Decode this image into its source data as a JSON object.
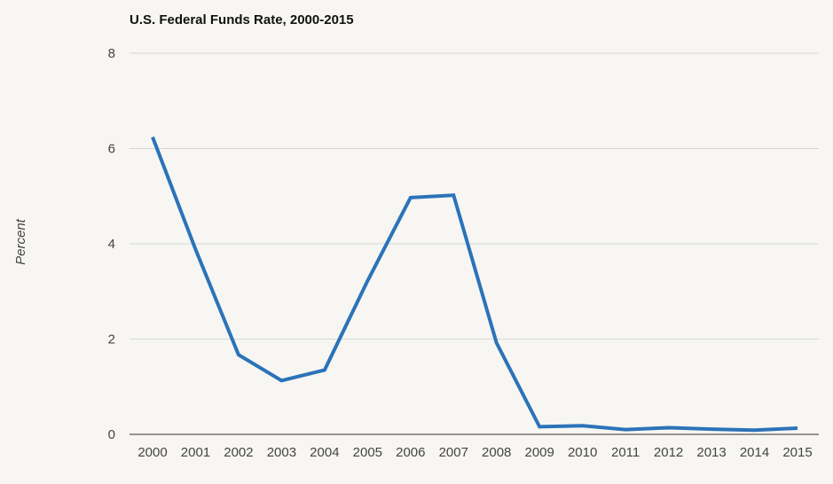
{
  "chart_data": {
    "type": "line",
    "title": "U.S. Federal Funds Rate, 2000-2015",
    "xlabel": "",
    "ylabel": "Percent",
    "categories": [
      "2000",
      "2001",
      "2002",
      "2003",
      "2004",
      "2005",
      "2006",
      "2007",
      "2008",
      "2009",
      "2010",
      "2011",
      "2012",
      "2013",
      "2014",
      "2015"
    ],
    "series": [
      {
        "values": [
          6.24,
          3.88,
          1.67,
          1.13,
          1.35,
          3.22,
          4.97,
          5.02,
          1.92,
          0.16,
          0.18,
          0.1,
          0.14,
          0.11,
          0.09,
          0.13
        ]
      }
    ],
    "ylim": [
      0,
      8
    ],
    "yticks": [
      "0",
      "2",
      "4",
      "6",
      "8"
    ],
    "grid": true,
    "legend": "none",
    "colors": {
      "line": "#2b73b9",
      "grid": "#d6d6d2",
      "axis": "#333333",
      "background": "#f7f6f2"
    }
  }
}
